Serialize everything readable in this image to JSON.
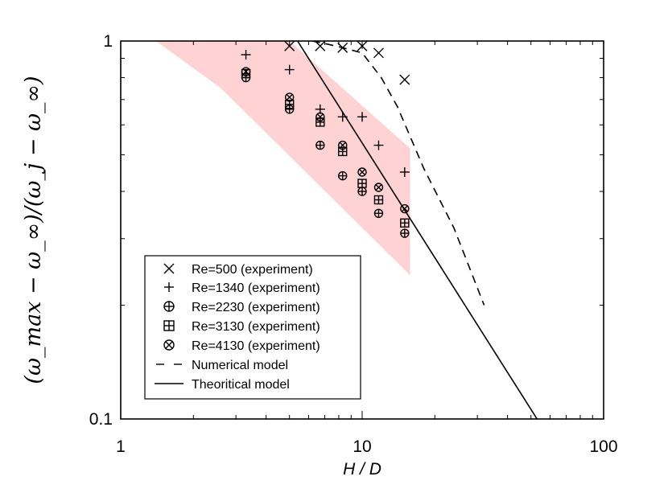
{
  "chart_data": {
    "type": "scatter",
    "title": "",
    "xlabel": "H / D",
    "ylabel": "(ω_max − ω_∞)/(ω_j − ω_∞)",
    "xscale": "log",
    "yscale": "log",
    "xlim": [
      1,
      100
    ],
    "ylim": [
      0.1,
      1
    ],
    "x_tick_labels": [
      {
        "value": 1,
        "label": "1"
      },
      {
        "value": 10,
        "label": "10"
      },
      {
        "value": 100,
        "label": "100"
      }
    ],
    "y_tick_labels": [
      {
        "value": 1,
        "label": "1"
      },
      {
        "value": 0.1,
        "label": "0.1"
      }
    ],
    "shaded_region": {
      "color": "#ffd3d3",
      "points": [
        [
          1.4,
          1.0
        ],
        [
          5.0,
          1.0
        ],
        [
          15.8,
          0.52
        ],
        [
          15.8,
          0.24
        ],
        [
          2.6,
          0.75
        ]
      ]
    },
    "series": [
      {
        "name": "Re=500",
        "label": "(experiment)",
        "marker": "x",
        "x": [
          5.0,
          6.7,
          8.3,
          10.0,
          11.7,
          15.0
        ],
        "y": [
          0.97,
          0.97,
          0.96,
          0.97,
          0.93,
          0.79
        ]
      },
      {
        "name": "Re=1340",
        "label": "(experiment)",
        "marker": "plus",
        "x": [
          3.3,
          5.0,
          6.7,
          8.3,
          10.0,
          11.7,
          15.0
        ],
        "y": [
          0.92,
          0.84,
          0.66,
          0.63,
          0.63,
          0.53,
          0.45
        ]
      },
      {
        "name": "Re=2230",
        "label": "(experiment)",
        "marker": "circle-plus",
        "x": [
          3.3,
          5.0,
          6.7,
          8.3,
          10.0,
          11.7,
          15.0
        ],
        "y": [
          0.8,
          0.66,
          0.53,
          0.44,
          0.4,
          0.35,
          0.31
        ]
      },
      {
        "name": "Re=3130",
        "label": "(experiment)",
        "marker": "square-plus",
        "x": [
          3.3,
          5.0,
          6.7,
          8.3,
          10.0,
          11.7,
          15.0
        ],
        "y": [
          0.82,
          0.68,
          0.61,
          0.51,
          0.42,
          0.38,
          0.33
        ]
      },
      {
        "name": "Re=4130",
        "label": "(experiment)",
        "marker": "circle-x",
        "x": [
          3.3,
          5.0,
          6.7,
          8.3,
          10.0,
          11.7,
          15.0
        ],
        "y": [
          0.83,
          0.71,
          0.63,
          0.53,
          0.45,
          0.41,
          0.36
        ]
      },
      {
        "name": "Numerical model",
        "marker": "dashed-line",
        "x": [
          6.2,
          7.0,
          8.3,
          10.0,
          12.0,
          14.0,
          18.0,
          24.0,
          32.0
        ],
        "y": [
          1.0,
          0.985,
          0.96,
          0.93,
          0.8,
          0.67,
          0.46,
          0.32,
          0.2
        ]
      },
      {
        "name": "Theoritical model",
        "marker": "solid-line",
        "x": [
          5.4,
          53.0
        ],
        "y": [
          1.0,
          0.1
        ]
      }
    ],
    "legend": {
      "position": "bottom-left",
      "entries": [
        {
          "symbol": "×",
          "label": "Re=500   (experiment)"
        },
        {
          "symbol": "+",
          "label": "Re=1340 (experiment)"
        },
        {
          "symbol": "⊕",
          "label": "Re=2230 (experiment)"
        },
        {
          "symbol": "⊞",
          "label": "Re=3130 (experiment)"
        },
        {
          "symbol": "⊗",
          "label": "Re=4130 (experiment)"
        },
        {
          "symbol": "dashed",
          "label": "Numerical model"
        },
        {
          "symbol": "solid",
          "label": "Theoritical model"
        }
      ]
    }
  }
}
